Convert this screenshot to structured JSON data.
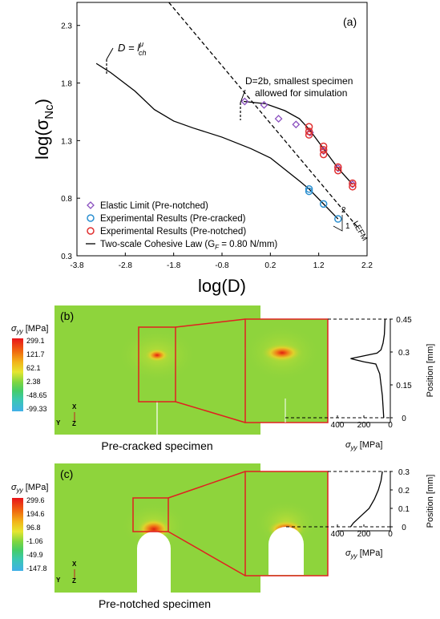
{
  "figure": {
    "panel_a": {
      "label": "(a)",
      "ylabel_main": "log(σ",
      "ylabel_sub": "Nc",
      "ylabel_close": ")",
      "xlabel": "log(D)",
      "annot_lch_main": "D = l",
      "annot_lch_sup": "μ",
      "annot_lch_sub": "ch",
      "annot_2b_line1": "D=2b, smallest specimen",
      "annot_2b_line2": "allowed for simulation",
      "slope_top": "2",
      "slope_side": "1",
      "lefm": "LEFM",
      "legend": {
        "elastic": "Elastic Limit (Pre-notched)",
        "precracked": "Experimental Results (Pre-cracked)",
        "prenotched": "Experimental Results (Pre-notched)",
        "cohesive": "Two-scale Cohesive Law (G",
        "cohesive_sub": "F",
        "cohesive_tail": " = 0.80 N/mm)"
      }
    },
    "panel_b": {
      "label": "(b)",
      "cb_title": "σ",
      "cb_title_sub": "yy",
      "cb_unit": " [MPa]",
      "cb_values": [
        "299.1",
        "121.7",
        "62.1",
        "2.38",
        "-48.65",
        "-99.33"
      ],
      "caption": "Pre-cracked specimen",
      "axis_x": "X",
      "axis_y": "Y",
      "axis_z": "Z",
      "prof_ticks_x": [
        "400",
        "200",
        "0"
      ],
      "prof_ticks_y": [
        "0.45",
        "0.3",
        "0.15",
        "0"
      ],
      "prof_xlabel": "σ",
      "prof_xlabel_sub": "yy",
      "prof_xlabel_unit": " [MPa]",
      "prof_ylabel": "Position [mm]"
    },
    "panel_c": {
      "label": "(c)",
      "cb_title": "σ",
      "cb_title_sub": "yy",
      "cb_unit": " [MPa]",
      "cb_values": [
        "299.6",
        "194.6",
        "96.8",
        "-1.06",
        "-49.9",
        "-147.8"
      ],
      "caption": "Pre-notched specimen",
      "axis_x": "X",
      "axis_y": "Y",
      "axis_z": "Z",
      "prof_ticks_x": [
        "400",
        "200",
        "0"
      ],
      "prof_ticks_y": [
        "0.3",
        "0.2",
        "0.1",
        "0"
      ],
      "prof_xlabel": "σ",
      "prof_xlabel_sub": "yy",
      "prof_xlabel_unit": " [MPa]",
      "prof_ylabel": "Position [mm]"
    }
  },
  "chart_data": [
    {
      "type": "scatter",
      "title": "",
      "xlabel": "log(D)",
      "ylabel": "log(σNc)",
      "xlim": [
        -3.8,
        2.2
      ],
      "ylim": [
        0.3,
        2.5
      ],
      "x_ticks": [
        -3.8,
        -2.8,
        -1.8,
        -0.8,
        0.2,
        1.2,
        2.2
      ],
      "y_ticks": [
        0.3,
        0.8,
        1.3,
        1.8,
        2.3
      ],
      "grid": false,
      "legend_position": "bottom-left",
      "series": [
        {
          "name": "Elastic Limit (Pre-notched)",
          "marker": "diamond",
          "color": "#8a4fbf",
          "x": [
            -0.33,
            0.07,
            0.37,
            0.73,
            1.02,
            1.3,
            1.6,
            1.9
          ],
          "y": [
            1.64,
            1.61,
            1.49,
            1.44,
            1.37,
            1.21,
            1.06,
            0.92
          ]
        },
        {
          "name": "Experimental Results (Pre-cracked)",
          "marker": "circle",
          "color": "#2a8fd0",
          "x": [
            1.0,
            1.0,
            1.3,
            1.6
          ],
          "y": [
            0.88,
            0.86,
            0.75,
            0.62
          ]
        },
        {
          "name": "Experimental Results (Pre-notched)",
          "marker": "circle",
          "color": "#e03030",
          "x": [
            1.0,
            1.0,
            1.0,
            1.3,
            1.3,
            1.3,
            1.6,
            1.6,
            1.9,
            1.9
          ],
          "y": [
            1.42,
            1.38,
            1.35,
            1.25,
            1.22,
            1.18,
            1.07,
            1.04,
            0.93,
            0.9
          ]
        },
        {
          "name": "Two-scale Cohesive Law (GF = 0.80 N/mm)",
          "type": "line",
          "color": "#000000",
          "x": [
            -3.4,
            -3.1,
            -2.6,
            -2.2,
            -1.8,
            -1.4,
            -0.8,
            -0.2,
            0.2
          ],
          "y": [
            1.97,
            1.89,
            1.73,
            1.57,
            1.47,
            1.41,
            1.33,
            1.23,
            1.15
          ]
        },
        {
          "name": "Two-scale Cohesive Law, pre-notched",
          "type": "line",
          "color": "#000000",
          "x": [
            -0.35,
            0.1,
            0.5,
            0.8,
            1.0,
            1.3,
            1.6,
            1.9
          ],
          "y": [
            1.64,
            1.62,
            1.56,
            1.49,
            1.4,
            1.23,
            1.06,
            0.92
          ]
        },
        {
          "name": "Two-scale Cohesive Law, pre-cracked",
          "type": "line",
          "color": "#000000",
          "x": [
            0.2,
            0.5,
            0.8,
            1.0,
            1.3,
            1.6
          ],
          "y": [
            1.15,
            1.05,
            0.95,
            0.88,
            0.75,
            0.62
          ]
        },
        {
          "name": "LEFM",
          "type": "line",
          "dashed": true,
          "color": "#000000",
          "x": [
            -1.9,
            2.0
          ],
          "y": [
            2.5,
            0.55
          ]
        }
      ]
    },
    {
      "type": "line",
      "xlabel": "σyy [MPa]",
      "ylabel": "Position [mm]",
      "xlim": [
        400,
        0
      ],
      "ylim": [
        0,
        0.45
      ],
      "series": [
        {
          "name": "",
          "x": [
            40,
            45,
            55,
            70,
            100,
            180,
            300,
            200,
            110,
            80,
            60,
            50
          ],
          "y": [
            0.45,
            0.38,
            0.34,
            0.31,
            0.295,
            0.285,
            0.27,
            0.255,
            0.245,
            0.2,
            0.1,
            0.0
          ]
        }
      ]
    },
    {
      "type": "line",
      "xlabel": "σyy [MPa]",
      "ylabel": "Position [mm]",
      "xlim": [
        400,
        0
      ],
      "ylim": [
        0,
        0.3
      ],
      "series": [
        {
          "name": "",
          "x": [
            60,
            70,
            90,
            120,
            160,
            220,
            280,
            300
          ],
          "y": [
            0.3,
            0.25,
            0.2,
            0.15,
            0.1,
            0.06,
            0.02,
            0.0
          ]
        }
      ]
    }
  ]
}
